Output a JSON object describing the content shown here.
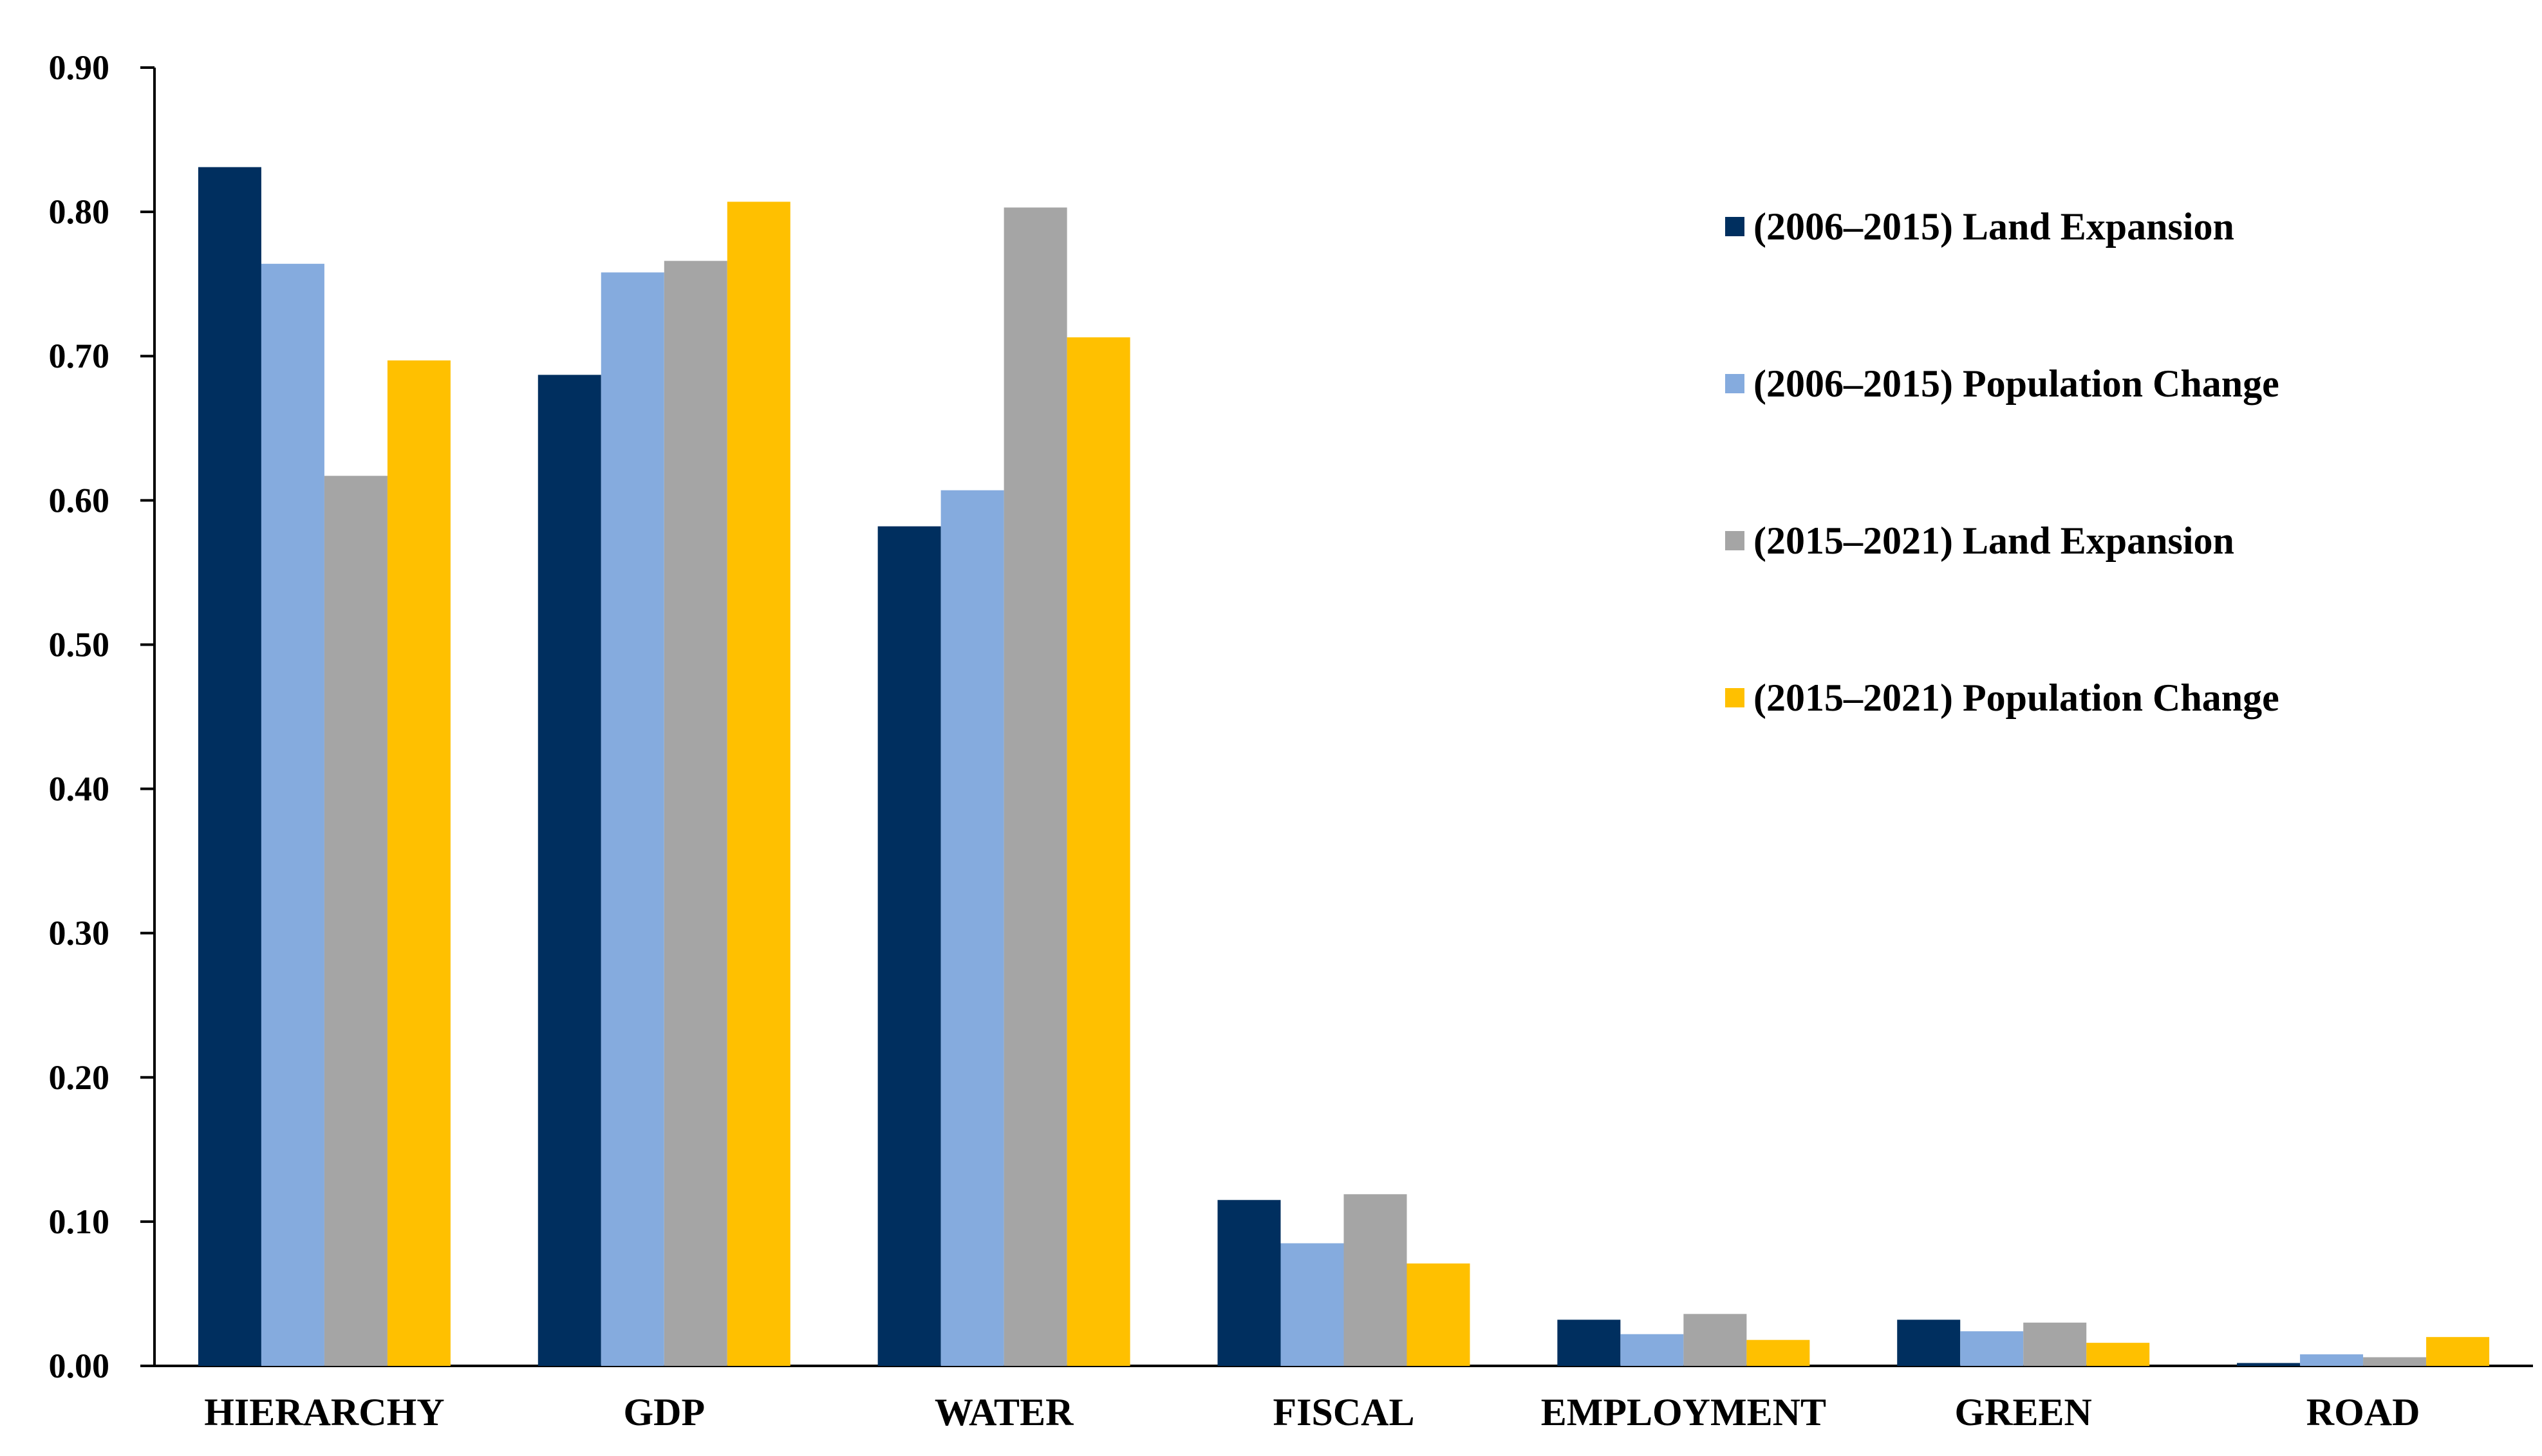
{
  "chart_data": {
    "type": "bar",
    "title": "",
    "xlabel": "",
    "ylabel": "",
    "ylim": [
      0,
      0.9
    ],
    "yticks": [
      "0.00",
      "0.10",
      "0.20",
      "0.30",
      "0.40",
      "0.50",
      "0.60",
      "0.70",
      "0.80",
      "0.90"
    ],
    "grid": false,
    "legend_position": "right",
    "categories": [
      "HIERARCHY",
      "GDP",
      "WATER",
      "FISCAL",
      "EMPLOYMENT",
      "GREEN",
      "ROAD"
    ],
    "series": [
      {
        "name": "(2006–2015) Land Expansion",
        "color": "#002F5F",
        "values": [
          0.831,
          0.687,
          0.582,
          0.115,
          0.032,
          0.032,
          0.002
        ]
      },
      {
        "name": "(2006–2015) Population Change",
        "color": "#85ABDE",
        "values": [
          0.764,
          0.758,
          0.607,
          0.085,
          0.022,
          0.024,
          0.008
        ]
      },
      {
        "name": "(2015–2021) Land Expansion",
        "color": "#A5A5A5",
        "values": [
          0.617,
          0.766,
          0.803,
          0.119,
          0.036,
          0.03,
          0.006
        ]
      },
      {
        "name": "(2015–2021) Population Change",
        "color": "#FFC000",
        "values": [
          0.697,
          0.807,
          0.713,
          0.071,
          0.018,
          0.016,
          0.02
        ]
      }
    ]
  }
}
